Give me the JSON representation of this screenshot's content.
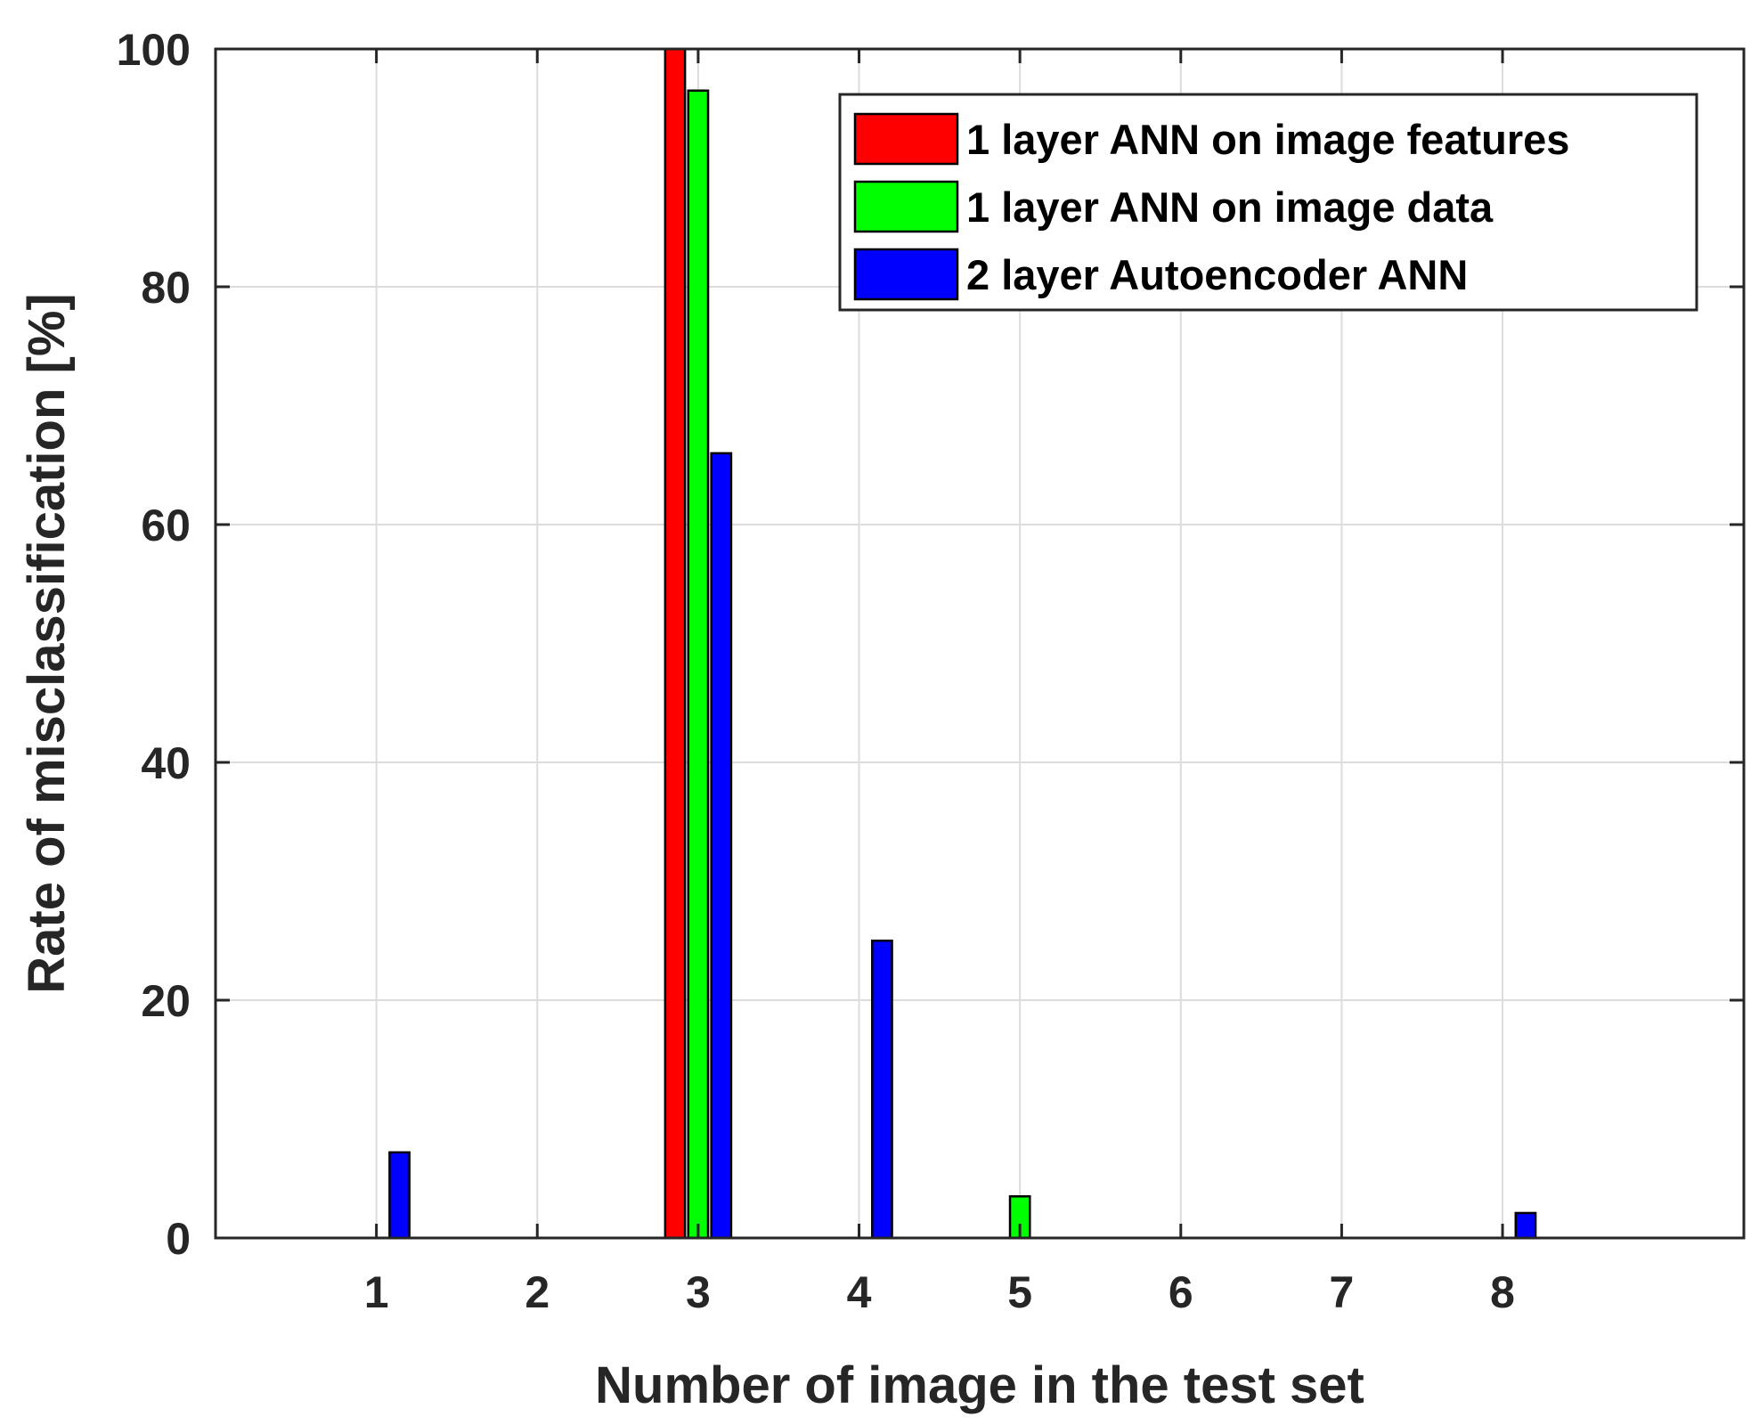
{
  "chart_data": {
    "type": "bar",
    "categories": [
      "1",
      "2",
      "3",
      "4",
      "5",
      "6",
      "7",
      "8"
    ],
    "series": [
      {
        "name": "1 layer ANN on image features",
        "color": "#ff0000",
        "values": [
          0,
          0,
          100,
          0,
          0,
          0,
          0,
          0
        ]
      },
      {
        "name": "1 layer ANN on image data",
        "color": "#00ff00",
        "values": [
          0,
          0,
          96.5,
          0,
          3.5,
          0,
          0,
          0
        ]
      },
      {
        "name": "2 layer Autoencoder ANN",
        "color": "#0000ff",
        "values": [
          7.2,
          0,
          66,
          25,
          0,
          0,
          0,
          2.1
        ]
      }
    ],
    "xlabel": "Number of image in the test set",
    "ylabel": "Rate of misclassification [%]",
    "ylim": [
      0,
      100
    ],
    "xlim": [
      0,
      9.5
    ],
    "yticks": [
      "0",
      "20",
      "40",
      "60",
      "80",
      "100"
    ],
    "grid": true,
    "legend_position": "top-right"
  }
}
